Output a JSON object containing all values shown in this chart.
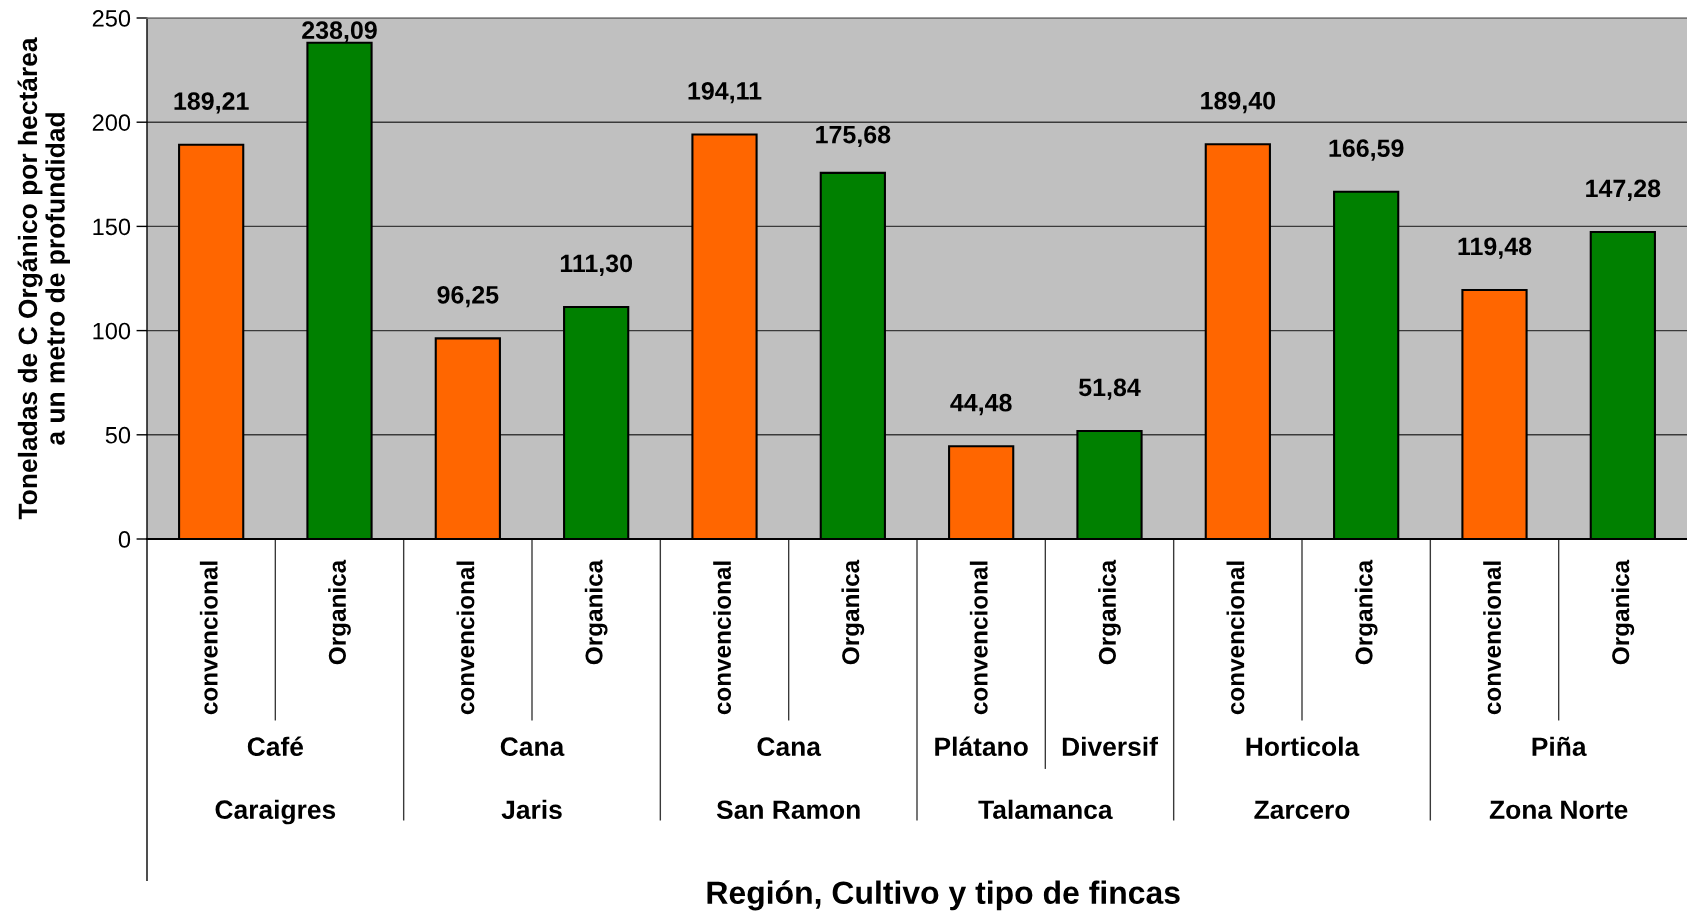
{
  "chart_data": {
    "type": "bar",
    "ylabel": "Toneladas de C Orgánico por hectárea\na un metro de profundidad",
    "categories": [
      "convencional",
      "Organica",
      "convencional",
      "Organica",
      "convencional",
      "Organica",
      "convencional",
      "Organica",
      "convencional",
      "Organica",
      "convencional",
      "Organica"
    ],
    "values": [
      189.21,
      238.09,
      96.25,
      111.3,
      194.11,
      175.68,
      44.48,
      51.84,
      189.4,
      166.59,
      119.48,
      147.28
    ],
    "colors": [
      "#ff6600",
      "#008000",
      "#ff6600",
      "#008000",
      "#ff6600",
      "#008000",
      "#ff6600",
      "#008000",
      "#ff6600",
      "#008000",
      "#ff6600",
      "#008000"
    ],
    "value_labels": [
      "189,21",
      "238,09",
      "96,25",
      "111,30",
      "194,11",
      "175,68",
      "44,48",
      "51,84",
      "189,40",
      "166,59",
      "119,48",
      "147,28"
    ],
    "ylim": [
      0,
      250
    ],
    "yticks": [
      0,
      50,
      100,
      150,
      200,
      250
    ],
    "grid": "y",
    "annotations": [
      "Café",
      "Cana",
      "Cana",
      "Plátano",
      "Diversif",
      "Horticola",
      "Piña",
      "Caraigres",
      "Jaris",
      "San Ramon",
      "Talamanca",
      "Zarcero",
      "Zona Norte",
      "Región, Cultivo y tipo de fincas"
    ]
  }
}
